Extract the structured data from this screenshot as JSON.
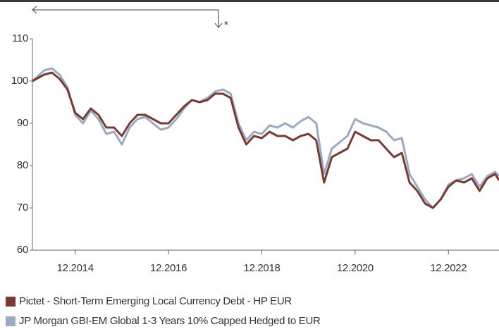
{
  "chart_data": {
    "type": "line",
    "annotation": "*",
    "x": [
      "2014-01",
      "2014-04",
      "2014-06",
      "2014-08",
      "2014-10",
      "2014-12",
      "2015-02",
      "2015-04",
      "2015-06",
      "2015-08",
      "2015-10",
      "2015-12",
      "2016-02",
      "2016-04",
      "2016-06",
      "2016-08",
      "2016-10",
      "2016-12",
      "2017-02",
      "2017-04",
      "2017-06",
      "2017-08",
      "2017-10",
      "2017-12",
      "2018-02",
      "2018-04",
      "2018-06",
      "2018-08",
      "2018-10",
      "2018-12",
      "2019-02",
      "2019-04",
      "2019-06",
      "2019-08",
      "2019-10",
      "2019-12",
      "2020-02",
      "2020-04",
      "2020-06",
      "2020-08",
      "2020-10",
      "2020-12",
      "2021-02",
      "2021-04",
      "2021-06",
      "2021-08",
      "2021-10",
      "2021-12",
      "2022-02",
      "2022-04",
      "2022-06",
      "2022-08",
      "2022-10",
      "2022-12",
      "2023-02",
      "2023-04",
      "2023-06",
      "2023-08",
      "2023-10",
      "2023-12",
      "2024-01"
    ],
    "series": [
      {
        "name": "JP Morgan GBI-EM Global 1-3 Years 10% Capped Hedged to EUR",
        "color": "#9aaac4",
        "values": [
          100,
          102.5,
          103,
          101.5,
          98.5,
          92,
          90,
          93,
          91,
          87.5,
          88,
          85,
          89,
          91,
          91.5,
          90,
          88.5,
          89,
          91,
          93.5,
          95.5,
          95,
          96,
          97.5,
          98,
          97,
          90,
          86,
          88,
          87.5,
          89.5,
          89,
          90,
          89,
          90.5,
          91.5,
          90,
          78,
          84,
          85.5,
          87,
          91,
          90,
          89.5,
          89,
          88,
          86,
          86.5,
          78,
          75,
          72,
          70,
          72,
          75.5,
          76.5,
          77,
          78,
          75,
          77.5,
          78.5,
          77.5
        ]
      },
      {
        "name": "Pictet - Short-Term Emerging Local Currency Debt - HP EUR",
        "color": "#7b3a30",
        "values": [
          100,
          101.5,
          102,
          100.5,
          98,
          92.5,
          91,
          93.5,
          92,
          89,
          89,
          87,
          90,
          92,
          92,
          91,
          90,
          90,
          92,
          94,
          95.5,
          95,
          95.5,
          97,
          97,
          96,
          89,
          85,
          87,
          86.5,
          88,
          87,
          87,
          86,
          87,
          87.5,
          86,
          76,
          82,
          83,
          84,
          88,
          87,
          86,
          86,
          84,
          82,
          83,
          76,
          74,
          71,
          70,
          72,
          75,
          76.5,
          76,
          77,
          74,
          77,
          78,
          76.5
        ]
      }
    ],
    "xlim": [
      "2014-01",
      "2024-01"
    ],
    "xticks": [
      {
        "value": "2014-12",
        "label": "12.2014"
      },
      {
        "value": "2016-12",
        "label": "12.2016"
      },
      {
        "value": "2018-12",
        "label": "12.2018"
      },
      {
        "value": "2020-12",
        "label": "12.2020"
      },
      {
        "value": "2022-12",
        "label": "12.2022"
      }
    ],
    "ylim": [
      60,
      110
    ],
    "yticks": [
      60,
      70,
      80,
      90,
      100,
      110
    ],
    "grid": false
  }
}
